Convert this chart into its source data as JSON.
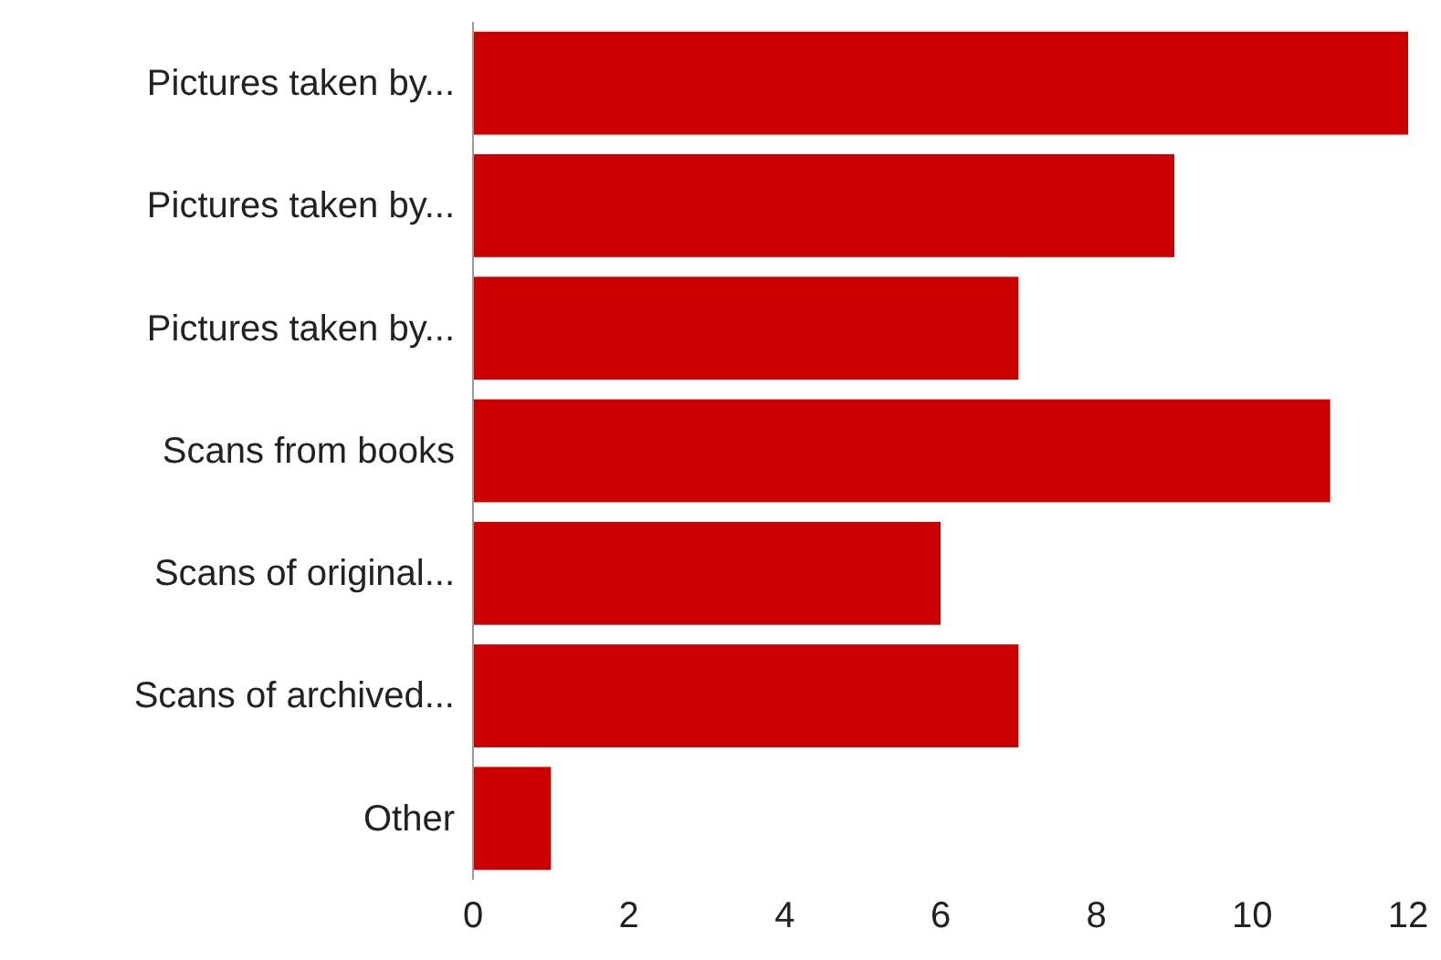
{
  "chart_data": {
    "type": "bar",
    "orientation": "horizontal",
    "categories": [
      "Pictures taken by...",
      "Pictures taken by...",
      "Pictures taken by...",
      "Scans from books",
      "Scans of original...",
      "Scans of archived...",
      "Other"
    ],
    "values": [
      12,
      9,
      7,
      11,
      6,
      7,
      1
    ],
    "color": "#cc0000",
    "xlim": [
      0,
      12
    ],
    "xticks": [
      0,
      2,
      4,
      6,
      8,
      10,
      12
    ]
  }
}
